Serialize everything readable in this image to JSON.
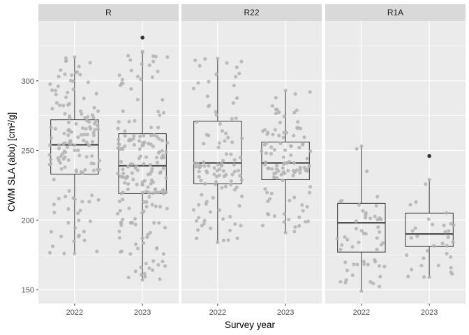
{
  "chart_data": {
    "type": "boxplot",
    "xlabel": "Survey year",
    "ylabel": "CWM SLA (abu) [cm²/g]",
    "ylim": [
      140,
      343
    ],
    "yticks": [
      150,
      200,
      250,
      300
    ],
    "grid": true,
    "colors": {
      "panel_bg": "#ebebeb",
      "strip_bg": "#d9d9d9",
      "grid": "#ffffff",
      "points": "#b3b3b3",
      "box": "#333333",
      "outlier": "#333333"
    },
    "facets": [
      {
        "name": "R",
        "categories": [
          "2022",
          "2023"
        ],
        "boxes": [
          {
            "year": "2022",
            "min": 176,
            "q1": 233,
            "median": 254,
            "q3": 272,
            "max": 317,
            "outliers": [],
            "n_points": 150,
            "jitter_seed": 11
          },
          {
            "year": "2023",
            "min": 157,
            "q1": 219,
            "median": 239,
            "q3": 262,
            "max": 321,
            "outliers": [
              331
            ],
            "n_points": 190,
            "jitter_seed": 23
          }
        ]
      },
      {
        "name": "R22",
        "categories": [
          "2022",
          "2023"
        ],
        "boxes": [
          {
            "year": "2022",
            "min": 184,
            "q1": 226,
            "median": 241,
            "q3": 271,
            "max": 316,
            "outliers": [],
            "n_points": 110,
            "jitter_seed": 37
          },
          {
            "year": "2023",
            "min": 191,
            "q1": 229,
            "median": 241,
            "q3": 256,
            "max": 293,
            "outliers": [],
            "n_points": 110,
            "jitter_seed": 41
          }
        ]
      },
      {
        "name": "R1A",
        "categories": [
          "2022",
          "2023"
        ],
        "boxes": [
          {
            "year": "2022",
            "min": 149,
            "q1": 177,
            "median": 198,
            "q3": 212,
            "max": 253,
            "outliers": [],
            "n_points": 55,
            "jitter_seed": 53
          },
          {
            "year": "2023",
            "min": 159,
            "q1": 181,
            "median": 190,
            "q3": 205,
            "max": 229,
            "outliers": [
              246
            ],
            "n_points": 35,
            "jitter_seed": 67
          }
        ]
      }
    ]
  }
}
